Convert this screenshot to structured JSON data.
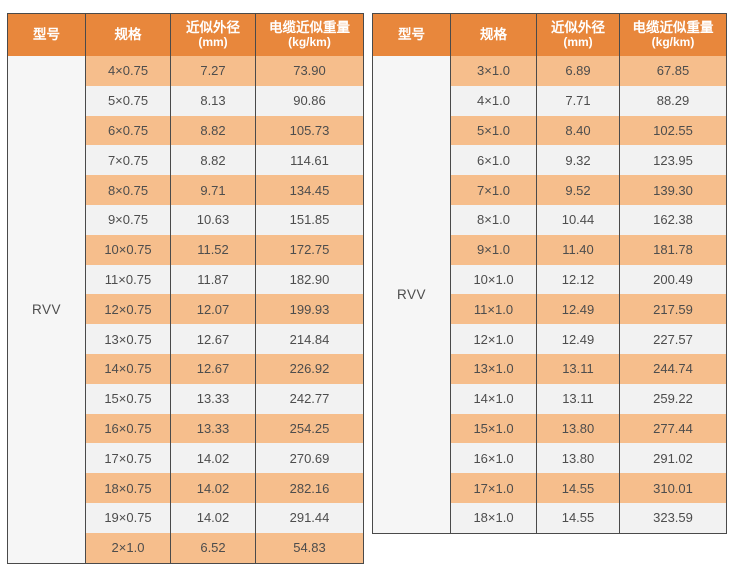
{
  "colors": {
    "accent": "#E8873C",
    "rowOrange": "#F6BE8C",
    "rowGrey": "#F2F2F2",
    "modelBg": "#F6F6F6",
    "border": "#4A4A4A",
    "text": "#4D4D4D"
  },
  "tables": [
    {
      "model": "RVV",
      "headers": [
        {
          "title": "型号"
        },
        {
          "title": "规格"
        },
        {
          "title": "近似外径",
          "unit": "(mm)"
        },
        {
          "title": "电缆近似重量",
          "unit": "(kg/km)"
        }
      ],
      "rows": [
        {
          "spec": "4×0.75",
          "od": "7.27",
          "weight": "73.90"
        },
        {
          "spec": "5×0.75",
          "od": "8.13",
          "weight": "90.86"
        },
        {
          "spec": "6×0.75",
          "od": "8.82",
          "weight": "105.73"
        },
        {
          "spec": "7×0.75",
          "od": "8.82",
          "weight": "114.61"
        },
        {
          "spec": "8×0.75",
          "od": "9.71",
          "weight": "134.45"
        },
        {
          "spec": "9×0.75",
          "od": "10.63",
          "weight": "151.85"
        },
        {
          "spec": "10×0.75",
          "od": "11.52",
          "weight": "172.75"
        },
        {
          "spec": "11×0.75",
          "od": "11.87",
          "weight": "182.90"
        },
        {
          "spec": "12×0.75",
          "od": "12.07",
          "weight": "199.93"
        },
        {
          "spec": "13×0.75",
          "od": "12.67",
          "weight": "214.84"
        },
        {
          "spec": "14×0.75",
          "od": "12.67",
          "weight": "226.92"
        },
        {
          "spec": "15×0.75",
          "od": "13.33",
          "weight": "242.77"
        },
        {
          "spec": "16×0.75",
          "od": "13.33",
          "weight": "254.25"
        },
        {
          "spec": "17×0.75",
          "od": "14.02",
          "weight": "270.69"
        },
        {
          "spec": "18×0.75",
          "od": "14.02",
          "weight": "282.16"
        },
        {
          "spec": "19×0.75",
          "od": "14.02",
          "weight": "291.44"
        },
        {
          "spec": "2×1.0",
          "od": "6.52",
          "weight": "54.83"
        }
      ]
    },
    {
      "model": "RVV",
      "headers": [
        {
          "title": "型号"
        },
        {
          "title": "规格"
        },
        {
          "title": "近似外径",
          "unit": "(mm)"
        },
        {
          "title": "电缆近似重量",
          "unit": "(kg/km)"
        }
      ],
      "rows": [
        {
          "spec": "3×1.0",
          "od": "6.89",
          "weight": "67.85"
        },
        {
          "spec": "4×1.0",
          "od": "7.71",
          "weight": "88.29"
        },
        {
          "spec": "5×1.0",
          "od": "8.40",
          "weight": "102.55"
        },
        {
          "spec": "6×1.0",
          "od": "9.32",
          "weight": "123.95"
        },
        {
          "spec": "7×1.0",
          "od": "9.52",
          "weight": "139.30"
        },
        {
          "spec": "8×1.0",
          "od": "10.44",
          "weight": "162.38"
        },
        {
          "spec": "9×1.0",
          "od": "11.40",
          "weight": "181.78"
        },
        {
          "spec": "10×1.0",
          "od": "12.12",
          "weight": "200.49"
        },
        {
          "spec": "11×1.0",
          "od": "12.49",
          "weight": "217.59"
        },
        {
          "spec": "12×1.0",
          "od": "12.49",
          "weight": "227.57"
        },
        {
          "spec": "13×1.0",
          "od": "13.11",
          "weight": "244.74"
        },
        {
          "spec": "14×1.0",
          "od": "13.11",
          "weight": "259.22"
        },
        {
          "spec": "15×1.0",
          "od": "13.80",
          "weight": "277.44"
        },
        {
          "spec": "16×1.0",
          "od": "13.80",
          "weight": "291.02"
        },
        {
          "spec": "17×1.0",
          "od": "14.55",
          "weight": "310.01"
        },
        {
          "spec": "18×1.0",
          "od": "14.55",
          "weight": "323.59"
        }
      ]
    }
  ]
}
